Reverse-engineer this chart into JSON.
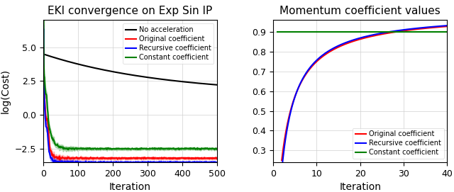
{
  "left_title": "EKI convergence on Exp Sin IP",
  "right_title": "Momentum coefficient values",
  "left_xlabel": "Iteration",
  "left_ylabel": "log(Cost)",
  "right_xlabel": "Iteration",
  "left_xlim": [
    0,
    500
  ],
  "left_ylim": [
    -3.5,
    7.0
  ],
  "right_xlim": [
    0,
    40
  ],
  "right_ylim": [
    0.24,
    0.96
  ],
  "colors": {
    "no_acc": "#000000",
    "original": "#ff0000",
    "recursive": "#0000ff",
    "constant": "#008000"
  },
  "legend_left": [
    "No acceleration",
    "Original coefficient",
    "Recursive coefficient",
    "Constant coefficient"
  ],
  "legend_right": [
    "Original coefficient",
    "Recursive coefficient",
    "Constant coefficient"
  ],
  "constant_coeff": 0.9,
  "title_fontsize": 11,
  "label_fontsize": 10,
  "tick_fontsize": 9
}
